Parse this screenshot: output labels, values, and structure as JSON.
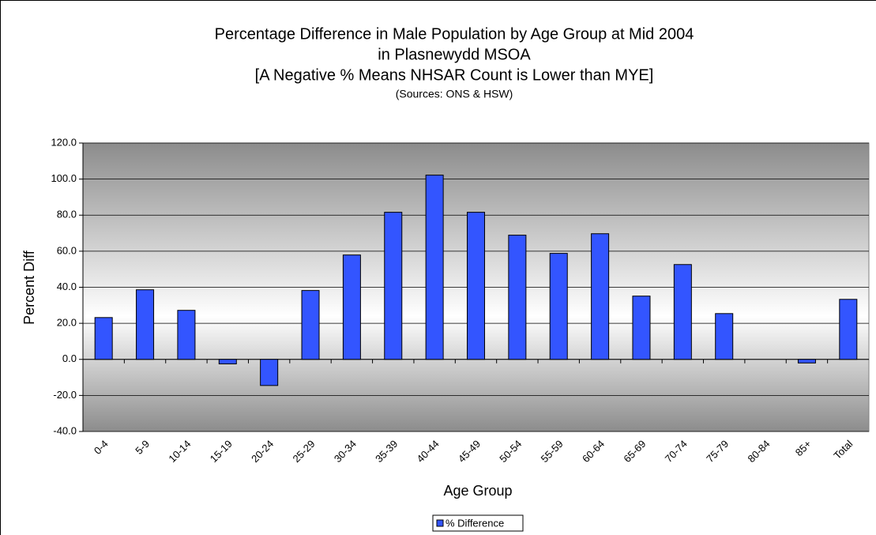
{
  "chart_data": {
    "type": "bar",
    "title": "Percentage Difference in Male Population by Age Group at Mid 2004",
    "subtitle": [
      "in Plasnewydd MSOA",
      "[A Negative % Means NHSAR Count is Lower than MYE]"
    ],
    "note": "(Sources: ONS & HSW)",
    "x_label": "Age Group",
    "y_label": "Percent Diff",
    "categories": [
      "0-4",
      "5-9",
      "10-14",
      "15-19",
      "20-24",
      "25-29",
      "30-34",
      "35-39",
      "40-44",
      "45-49",
      "50-54",
      "55-59",
      "60-64",
      "65-69",
      "70-74",
      "75-79",
      "80-84",
      "85+",
      "Total"
    ],
    "series": [
      {
        "name": "% Difference",
        "color": "#3355ff",
        "values": [
          23.2,
          38.6,
          27.2,
          -2.5,
          -14.5,
          38.2,
          57.9,
          81.6,
          102.2,
          81.6,
          68.9,
          58.8,
          69.7,
          35.1,
          52.6,
          25.4,
          0,
          -2.0,
          33.3
        ]
      }
    ],
    "ylim": [
      -40,
      120
    ],
    "yticks": [
      {
        "value": -40,
        "label": "-40.0"
      },
      {
        "value": -20,
        "label": "-20.0"
      },
      {
        "value": 0,
        "label": "0.0"
      },
      {
        "value": 20,
        "label": "20.0"
      },
      {
        "value": 40,
        "label": "40.0"
      },
      {
        "value": 60,
        "label": "60.0"
      },
      {
        "value": 80,
        "label": "80.0"
      },
      {
        "value": 100,
        "label": "100.0"
      },
      {
        "value": 120,
        "label": "120.0"
      }
    ],
    "grid": true,
    "legend": "bottom"
  }
}
